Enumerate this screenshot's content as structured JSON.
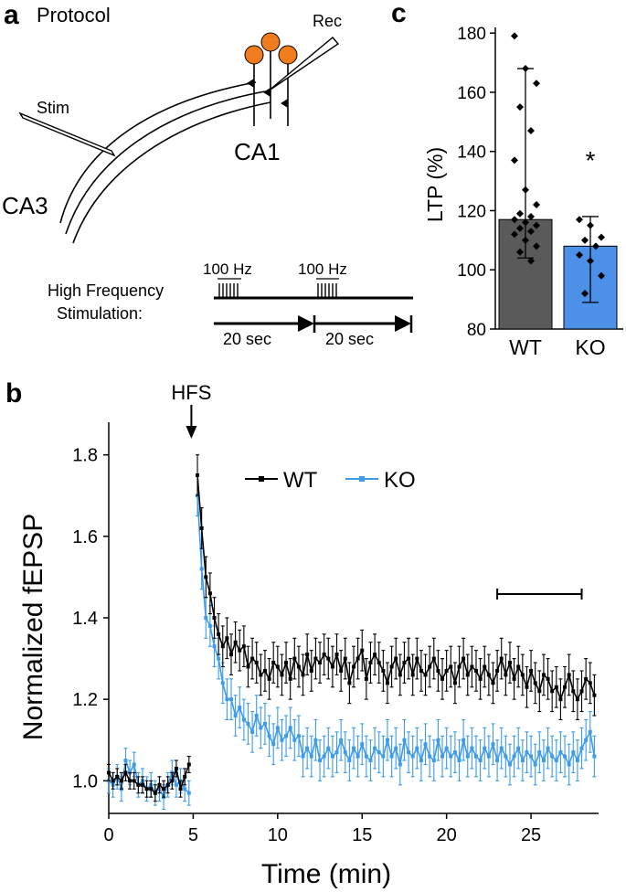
{
  "panels": {
    "a": {
      "letter": "a",
      "title": "Protocol",
      "stim_label": "Stim",
      "rec_label": "Rec",
      "ca1_label": "CA1",
      "ca3_label": "CA3",
      "hfs_line1": "High Frequency",
      "hfs_line2": "Stimulation:",
      "burst1_label": "100 Hz",
      "burst2_label": "100 Hz",
      "interval1_label": "20 sec",
      "interval2_label": "20 sec"
    },
    "b": {
      "letter": "b"
    },
    "c": {
      "letter": "c"
    }
  },
  "colors": {
    "wt": "#000000",
    "ko": "#3d9be9",
    "wt_bar": "#5a5a5a",
    "ko_bar": "#4d90e8",
    "neuron": "#f07c1e"
  },
  "chart_data": [
    {
      "panel": "b",
      "type": "line",
      "title": "",
      "xlabel": "Time (min)",
      "ylabel": "Normalized fEPSP",
      "xlim": [
        0,
        29
      ],
      "ylim": [
        0.92,
        1.88
      ],
      "xticks": [
        "0",
        "5",
        "10",
        "15",
        "20",
        "25"
      ],
      "yticks": [
        "1.0",
        "1.2",
        "1.4",
        "1.6",
        "1.8"
      ],
      "annotation": "HFS",
      "annotation_x": 5,
      "analysis_window": [
        23,
        28
      ],
      "legend": [
        "WT",
        "KO"
      ],
      "series": [
        {
          "name": "WT",
          "baseline": {
            "x": [
              0,
              0.25,
              0.5,
              0.75,
              1,
              1.25,
              1.5,
              1.75,
              2,
              2.25,
              2.5,
              2.75,
              3,
              3.25,
              3.5,
              3.75,
              4,
              4.25,
              4.5,
              4.75
            ],
            "y": [
              1.02,
              1.0,
              1.01,
              1.0,
              1.02,
              1.0,
              1.0,
              0.99,
              0.99,
              0.98,
              0.98,
              0.97,
              0.99,
              0.98,
              0.99,
              1.0,
              1.03,
              0.98,
              1.01,
              1.04
            ],
            "err": [
              0.02,
              0.02,
              0.02,
              0.02,
              0.02,
              0.02,
              0.02,
              0.02,
              0.02,
              0.02,
              0.02,
              0.02,
              0.02,
              0.02,
              0.02,
              0.02,
              0.02,
              0.02,
              0.02,
              0.02
            ]
          },
          "post": {
            "x": [
              5.25,
              5.5,
              5.75,
              6,
              6.25,
              6.5,
              6.75,
              7,
              7.25,
              7.5,
              7.75,
              8,
              8.25,
              8.5,
              8.75,
              9,
              9.25,
              9.5,
              9.75,
              10,
              10.25,
              10.5,
              10.75,
              11,
              11.25,
              11.5,
              11.75,
              12,
              12.25,
              12.5,
              12.75,
              13,
              13.25,
              13.5,
              13.75,
              14,
              14.25,
              14.5,
              14.75,
              15,
              15.25,
              15.5,
              15.75,
              16,
              16.25,
              16.5,
              16.75,
              17,
              17.25,
              17.5,
              17.75,
              18,
              18.25,
              18.5,
              18.75,
              19,
              19.25,
              19.5,
              19.75,
              20,
              20.25,
              20.5,
              20.75,
              21,
              21.25,
              21.5,
              21.75,
              22,
              22.25,
              22.5,
              22.75,
              23,
              23.25,
              23.5,
              23.75,
              24,
              24.25,
              24.5,
              24.75,
              25,
              25.25,
              25.5,
              25.75,
              26,
              26.25,
              26.5,
              26.75,
              27,
              27.25,
              27.5,
              27.75,
              28,
              28.25,
              28.5,
              28.75
            ],
            "y": [
              1.75,
              1.62,
              1.5,
              1.46,
              1.4,
              1.36,
              1.33,
              1.35,
              1.31,
              1.34,
              1.32,
              1.33,
              1.28,
              1.3,
              1.29,
              1.26,
              1.27,
              1.25,
              1.29,
              1.28,
              1.26,
              1.29,
              1.25,
              1.3,
              1.28,
              1.26,
              1.31,
              1.27,
              1.3,
              1.29,
              1.31,
              1.3,
              1.28,
              1.31,
              1.27,
              1.3,
              1.24,
              1.28,
              1.3,
              1.32,
              1.25,
              1.29,
              1.31,
              1.29,
              1.27,
              1.24,
              1.28,
              1.3,
              1.26,
              1.29,
              1.3,
              1.26,
              1.3,
              1.27,
              1.26,
              1.28,
              1.3,
              1.27,
              1.25,
              1.27,
              1.28,
              1.24,
              1.28,
              1.3,
              1.26,
              1.28,
              1.27,
              1.25,
              1.28,
              1.26,
              1.24,
              1.27,
              1.3,
              1.26,
              1.29,
              1.25,
              1.28,
              1.26,
              1.23,
              1.27,
              1.24,
              1.22,
              1.26,
              1.25,
              1.22,
              1.23,
              1.2,
              1.23,
              1.26,
              1.22,
              1.2,
              1.22,
              1.25,
              1.24,
              1.21
            ],
            "err": [
              0.05,
              0.05,
              0.05,
              0.05,
              0.05,
              0.05,
              0.05,
              0.05,
              0.05,
              0.05,
              0.05,
              0.05,
              0.05,
              0.05,
              0.05,
              0.05,
              0.05,
              0.05,
              0.05,
              0.05,
              0.05,
              0.05,
              0.05,
              0.05,
              0.05,
              0.05,
              0.05,
              0.05,
              0.05,
              0.05,
              0.05,
              0.05,
              0.05,
              0.05,
              0.05,
              0.05,
              0.05,
              0.05,
              0.05,
              0.05,
              0.05,
              0.05,
              0.05,
              0.05,
              0.05,
              0.05,
              0.05,
              0.05,
              0.05,
              0.05,
              0.05,
              0.05,
              0.05,
              0.05,
              0.05,
              0.05,
              0.05,
              0.05,
              0.05,
              0.05,
              0.05,
              0.05,
              0.05,
              0.05,
              0.05,
              0.05,
              0.05,
              0.05,
              0.05,
              0.05,
              0.05,
              0.05,
              0.05,
              0.05,
              0.05,
              0.05,
              0.05,
              0.05,
              0.05,
              0.05,
              0.05,
              0.05,
              0.05,
              0.05,
              0.05,
              0.05,
              0.05,
              0.05,
              0.05,
              0.05,
              0.05,
              0.05,
              0.05,
              0.05,
              0.05
            ]
          }
        },
        {
          "name": "KO",
          "baseline": {
            "x": [
              0,
              0.25,
              0.5,
              0.75,
              1,
              1.25,
              1.5,
              1.75,
              2,
              2.25,
              2.5,
              2.75,
              3,
              3.25,
              3.5,
              3.75,
              4,
              4.25,
              4.5,
              4.75
            ],
            "y": [
              1.0,
              0.99,
              1.01,
              0.98,
              1.05,
              1.02,
              1.04,
              0.99,
              1.0,
              0.98,
              0.99,
              0.97,
              0.98,
              0.96,
              0.99,
              1.02,
              0.99,
              1.0,
              0.98,
              0.97
            ],
            "err": [
              0.03,
              0.03,
              0.03,
              0.03,
              0.03,
              0.03,
              0.03,
              0.03,
              0.03,
              0.03,
              0.03,
              0.03,
              0.03,
              0.03,
              0.03,
              0.03,
              0.03,
              0.03,
              0.03,
              0.03
            ]
          },
          "post": {
            "x": [
              5.25,
              5.5,
              5.75,
              6,
              6.25,
              6.5,
              6.75,
              7,
              7.25,
              7.5,
              7.75,
              8,
              8.25,
              8.5,
              8.75,
              9,
              9.25,
              9.5,
              9.75,
              10,
              10.25,
              10.5,
              10.75,
              11,
              11.25,
              11.5,
              11.75,
              12,
              12.25,
              12.5,
              12.75,
              13,
              13.25,
              13.5,
              13.75,
              14,
              14.25,
              14.5,
              14.75,
              15,
              15.25,
              15.5,
              15.75,
              16,
              16.25,
              16.5,
              16.75,
              17,
              17.25,
              17.5,
              17.75,
              18,
              18.25,
              18.5,
              18.75,
              19,
              19.25,
              19.5,
              19.75,
              20,
              20.25,
              20.5,
              20.75,
              21,
              21.25,
              21.5,
              21.75,
              22,
              22.25,
              22.5,
              22.75,
              23,
              23.25,
              23.5,
              23.75,
              24,
              24.25,
              24.5,
              24.75,
              25,
              25.25,
              25.5,
              25.75,
              26,
              26.25,
              26.5,
              26.75,
              27,
              27.25,
              27.5,
              27.75,
              28,
              28.25,
              28.5,
              28.75
            ],
            "y": [
              1.7,
              1.52,
              1.4,
              1.38,
              1.33,
              1.3,
              1.24,
              1.2,
              1.2,
              1.16,
              1.18,
              1.15,
              1.14,
              1.12,
              1.16,
              1.13,
              1.14,
              1.11,
              1.09,
              1.13,
              1.1,
              1.11,
              1.13,
              1.1,
              1.11,
              1.06,
              1.08,
              1.06,
              1.1,
              1.05,
              1.06,
              1.08,
              1.06,
              1.07,
              1.1,
              1.07,
              1.05,
              1.08,
              1.06,
              1.09,
              1.06,
              1.05,
              1.08,
              1.07,
              1.06,
              1.1,
              1.06,
              1.08,
              1.04,
              1.1,
              1.07,
              1.06,
              1.08,
              1.05,
              1.09,
              1.06,
              1.05,
              1.1,
              1.06,
              1.08,
              1.06,
              1.07,
              1.05,
              1.1,
              1.06,
              1.08,
              1.06,
              1.05,
              1.08,
              1.06,
              1.09,
              1.05,
              1.08,
              1.06,
              1.04,
              1.06,
              1.08,
              1.05,
              1.07,
              1.06,
              1.04,
              1.07,
              1.05,
              1.08,
              1.06,
              1.05,
              1.07,
              1.06,
              1.04,
              1.07,
              1.05,
              1.08,
              1.1,
              1.12,
              1.06
            ],
            "err": [
              0.05,
              0.05,
              0.05,
              0.05,
              0.05,
              0.05,
              0.05,
              0.05,
              0.05,
              0.05,
              0.05,
              0.05,
              0.05,
              0.05,
              0.05,
              0.05,
              0.05,
              0.05,
              0.05,
              0.05,
              0.05,
              0.05,
              0.05,
              0.05,
              0.05,
              0.05,
              0.05,
              0.05,
              0.05,
              0.05,
              0.05,
              0.05,
              0.05,
              0.05,
              0.05,
              0.05,
              0.05,
              0.05,
              0.05,
              0.05,
              0.05,
              0.05,
              0.05,
              0.05,
              0.05,
              0.05,
              0.05,
              0.05,
              0.05,
              0.05,
              0.05,
              0.05,
              0.05,
              0.05,
              0.05,
              0.05,
              0.05,
              0.05,
              0.05,
              0.05,
              0.05,
              0.05,
              0.05,
              0.05,
              0.05,
              0.05,
              0.05,
              0.05,
              0.05,
              0.05,
              0.05,
              0.05,
              0.05,
              0.05,
              0.05,
              0.05,
              0.05,
              0.05,
              0.05,
              0.05,
              0.05,
              0.05,
              0.05,
              0.05,
              0.05,
              0.05,
              0.05,
              0.05,
              0.05,
              0.05,
              0.05,
              0.05,
              0.05,
              0.05,
              0.05
            ]
          }
        }
      ]
    },
    {
      "panel": "c",
      "type": "bar",
      "title": "",
      "xlabel": "",
      "ylabel": "LTP (%)",
      "ylim": [
        80,
        185
      ],
      "yticks": [
        "80",
        "100",
        "120",
        "140",
        "160",
        "180"
      ],
      "categories": [
        "WT",
        "KO"
      ],
      "values": [
        117,
        108
      ],
      "err_low": [
        104,
        89
      ],
      "err_high": [
        168,
        118
      ],
      "points": [
        [
          179,
          168,
          163,
          155,
          147,
          137,
          127,
          122,
          119,
          118,
          117,
          116,
          115,
          114,
          113,
          112,
          110,
          108,
          106,
          103
        ],
        [
          117,
          115,
          111,
          110,
          108,
          105,
          103,
          98,
          92
        ]
      ],
      "significance": "*"
    }
  ]
}
